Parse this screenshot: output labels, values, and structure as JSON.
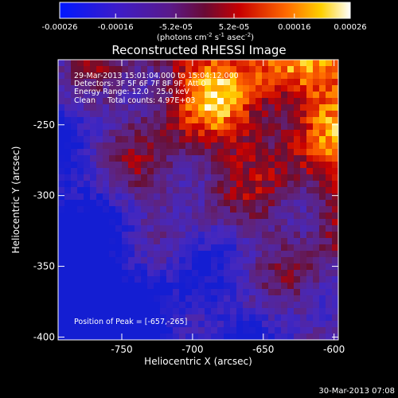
{
  "chart_data": {
    "type": "heatmap",
    "title": "Reconstructed RHESSI Image",
    "xlabel": "Heliocentric X (arcsec)",
    "ylabel": "Heliocentric Y (arcsec)",
    "xlim": [
      -795,
      -597
    ],
    "ylim": [
      -402,
      -204
    ],
    "x_ticks": [
      {
        "value": -750,
        "label": "-750"
      },
      {
        "value": -700,
        "label": "-700"
      },
      {
        "value": -650,
        "label": "-650"
      },
      {
        "value": -600,
        "label": "-600"
      }
    ],
    "y_ticks": [
      {
        "value": -250,
        "label": "-250"
      },
      {
        "value": -300,
        "label": "-300"
      },
      {
        "value": -350,
        "label": "-350"
      },
      {
        "value": -400,
        "label": "-400"
      }
    ],
    "colorbar": {
      "range": [
        -0.00026,
        0.00026
      ],
      "ticks": [
        {
          "value": -0.00026,
          "label": "-0.00026"
        },
        {
          "value": -0.00016,
          "label": "-0.00016"
        },
        {
          "value": -5.2e-05,
          "label": "-5.2e-05"
        },
        {
          "value": 5.2e-05,
          "label": "5.2e-05"
        },
        {
          "value": 0.00016,
          "label": "0.00016"
        },
        {
          "value": 0.00026,
          "label": "0.00026"
        }
      ],
      "unit_label": "(photons cm",
      "unit_exp1": "-2",
      "unit_mid": " s",
      "unit_exp2": "-1",
      "unit_end": " asec",
      "unit_exp3": "-2",
      "unit_close": ")"
    },
    "annotations": [
      "29-Mar-2013 15:01:04.000 to 15:04:12.000",
      "Detectors: 3F 5F 6F 7F 8F 9F, Att 0",
      "Energy Range: 12.0 - 25.0 keV",
      "Clean     Total counts: 4.97E+03"
    ],
    "peak_label": "Position of Peak = [-657,-265]",
    "peak": [
      -657,
      -265
    ],
    "grid": false,
    "colormap": "blue-purple-red-yellow-white (RHESSI std)"
  },
  "footer": {
    "timestamp": "30-Mar-2013 07:08"
  }
}
